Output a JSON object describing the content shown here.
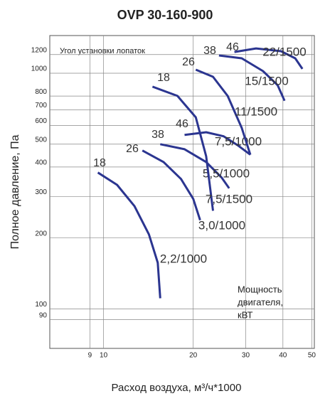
{
  "chart_data": {
    "type": "line",
    "title": "OVP 30-160-900",
    "y_label": "Полное давление, Па",
    "x_label": "Расход воздуха, м³/ч*1000",
    "annotation_angle": "Угол установки лопаток",
    "annotation_power": [
      "Мощность",
      "двигателя,",
      "кВТ"
    ],
    "log_x": true,
    "log_y": true,
    "grid": true,
    "xlim": [
      6.6,
      51
    ],
    "ylim": [
      68,
      1445
    ],
    "xticks": [
      9,
      10,
      20,
      30,
      40,
      50
    ],
    "yticks": [
      90,
      100,
      200,
      300,
      400,
      500,
      600,
      700,
      800,
      1000,
      1200
    ],
    "series": [
      {
        "name": "2,2/1000",
        "angle": "18",
        "color": "#2b3590",
        "x": [
          9.57,
          11.1,
          12.7,
          14.2,
          15.2,
          15.5
        ],
        "values": [
          379,
          336,
          273,
          207,
          157,
          111
        ]
      },
      {
        "name": "3,0/1000",
        "angle": "26",
        "color": "#2b3590",
        "x": [
          13.5,
          15.9,
          18.2,
          20.0,
          21.1
        ],
        "values": [
          470,
          420,
          356,
          293,
          238
        ]
      },
      {
        "name": "5,5/1000",
        "angle": "38",
        "color": "#2b3590",
        "x": [
          15.5,
          18.7,
          22.1,
          24.9,
          26.4
        ],
        "values": [
          500,
          476,
          420,
          361,
          325
        ]
      },
      {
        "name": "7,5/1000",
        "angle": "46",
        "color": "#2b3590",
        "x": [
          18.7,
          22.1,
          25.3,
          28.3,
          31.1
        ],
        "values": [
          547,
          562,
          540,
          493,
          451
        ]
      },
      {
        "name": "7,5/1500",
        "angle": "18",
        "color": "#2b3590",
        "x": [
          14.6,
          17.7,
          20.4,
          22.1,
          23.3
        ],
        "values": [
          877,
          801,
          650,
          444,
          261
        ]
      },
      {
        "name": "11/1500",
        "angle": "26",
        "color": "#2b3590",
        "x": [
          20.4,
          23.3,
          26.1,
          29.1,
          31.1
        ],
        "values": [
          1035,
          966,
          801,
          586,
          451
        ]
      },
      {
        "name": "15/1500",
        "angle": "38",
        "color": "#2b3590",
        "x": [
          24.4,
          29.1,
          34.3,
          38.4,
          40.5
        ],
        "values": [
          1190,
          1157,
          1021,
          889,
          764
        ]
      },
      {
        "name": "22/1500",
        "angle": "46",
        "color": "#2b3590",
        "x": [
          27.5,
          32.5,
          39.4,
          44.0,
          46.5
        ],
        "values": [
          1231,
          1274,
          1240,
          1157,
          1043
        ]
      }
    ]
  }
}
